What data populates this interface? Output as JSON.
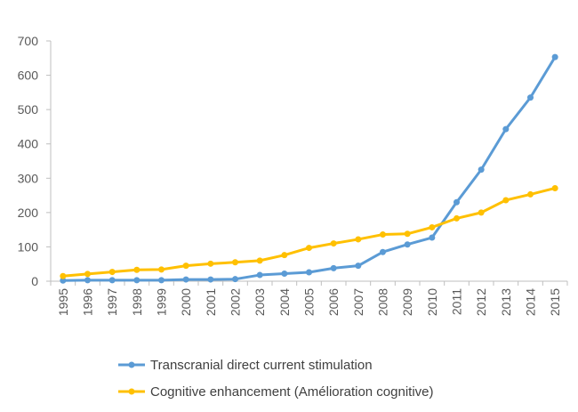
{
  "chart_data": {
    "type": "line",
    "title": "",
    "xlabel": "",
    "ylabel": "",
    "ylim": [
      0,
      700
    ],
    "y_ticks": [
      0,
      100,
      200,
      300,
      400,
      500,
      600,
      700
    ],
    "grid": false,
    "legend_position": "bottom",
    "x": [
      "1995",
      "1996",
      "1997",
      "1998",
      "1999",
      "2000",
      "2001",
      "2002",
      "2003",
      "2004",
      "2005",
      "2006",
      "2007",
      "2008",
      "2009",
      "2010",
      "2011",
      "2012",
      "2013",
      "2014",
      "2015"
    ],
    "series": [
      {
        "name": "Transcranial direct current stimulation",
        "color": "#5b9bd5",
        "values": [
          2,
          3,
          3,
          3,
          3,
          5,
          5,
          6,
          18,
          22,
          26,
          38,
          45,
          85,
          107,
          127,
          230,
          325,
          443,
          535,
          653
        ]
      },
      {
        "name": "Cognitive enhancement (Amélioration cognitive)",
        "color": "#ffc000",
        "values": [
          15,
          21,
          27,
          33,
          34,
          45,
          51,
          55,
          60,
          76,
          97,
          110,
          122,
          136,
          138,
          157,
          183,
          200,
          236,
          253,
          271
        ]
      }
    ]
  }
}
